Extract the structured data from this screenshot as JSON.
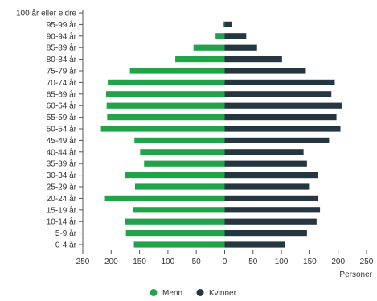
{
  "chart_data": {
    "type": "bar",
    "orientation": "horizontal",
    "layout": "population-pyramid",
    "categories": [
      "100 år eller eldre",
      "95-99 år",
      "90-94 år",
      "85-89 år",
      "80-84 år",
      "75-79 år",
      "70-74 år",
      "65-69 år",
      "60-64 år",
      "55-59 år",
      "50-54 år",
      "45-49 år",
      "40-44 år",
      "35-39 år",
      "30-34 år",
      "25-29 år",
      "20-24 år",
      "15-19 år",
      "10-14 år",
      "5-9 år",
      "0-4 år"
    ],
    "series": [
      {
        "name": "Menn",
        "color": "#22a34a",
        "side": "left",
        "values": [
          0,
          2,
          16,
          55,
          87,
          167,
          206,
          209,
          208,
          207,
          218,
          159,
          149,
          142,
          176,
          158,
          211,
          162,
          176,
          174,
          160
        ]
      },
      {
        "name": "Kvinner",
        "color": "#263640",
        "side": "right",
        "values": [
          0,
          12,
          38,
          57,
          101,
          143,
          194,
          188,
          206,
          197,
          204,
          184,
          139,
          145,
          165,
          150,
          165,
          168,
          162,
          145,
          107
        ]
      }
    ],
    "xlabel": "Personer",
    "xlim": [
      -250,
      250
    ],
    "xticks": [
      -250,
      -200,
      -150,
      -100,
      -50,
      0,
      50,
      100,
      150,
      200,
      250
    ],
    "xtick_labels": [
      "250",
      "200",
      "150",
      "100",
      "50",
      "0",
      "50",
      "100",
      "150",
      "200",
      "250"
    ],
    "legend_position": "bottom-center",
    "grid": false
  }
}
